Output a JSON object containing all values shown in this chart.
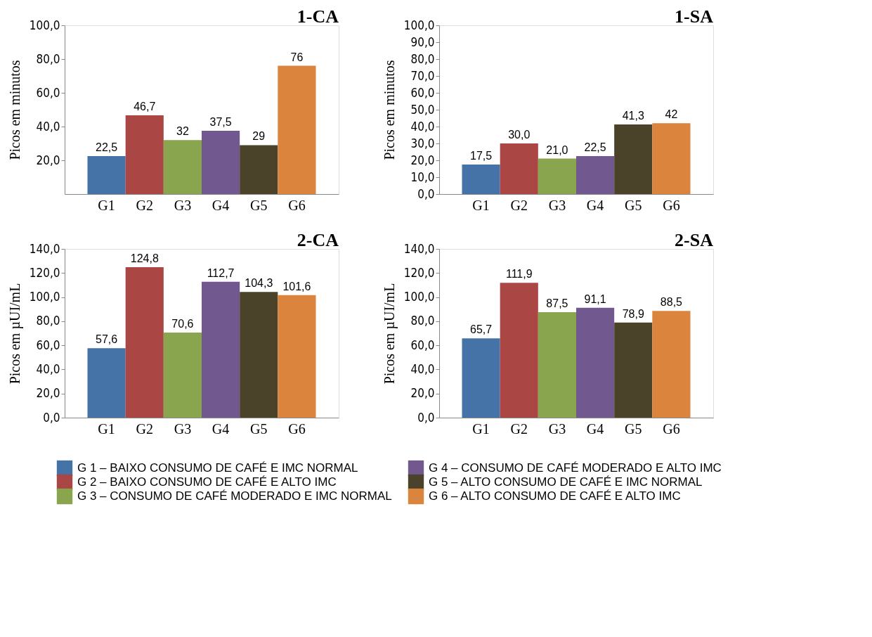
{
  "chart_data": [
    {
      "type": "bar",
      "title": "1-CA",
      "ylabel": "Picos em minutos",
      "categories": [
        "G1",
        "G2",
        "G3",
        "G4",
        "G5",
        "G6"
      ],
      "values": [
        22.5,
        46.7,
        32,
        37.5,
        29,
        76
      ],
      "value_labels": [
        "22,5",
        "46,7",
        "32",
        "37,5",
        "29",
        "76"
      ],
      "colors": [
        "#4572a7",
        "#aa4643",
        "#89a54e",
        "#71588f",
        "#4a4329",
        "#db843d"
      ],
      "ylim": [
        0,
        100
      ],
      "yticks": [
        {
          "value": 20,
          "label": "20,0"
        },
        {
          "value": 40,
          "label": "40,0"
        },
        {
          "value": 60,
          "label": "60,0"
        },
        {
          "value": 80,
          "label": "80,0"
        },
        {
          "value": 100,
          "label": "100,0"
        }
      ]
    },
    {
      "type": "bar",
      "title": "1-SA",
      "ylabel": "Picos em minutos",
      "categories": [
        "G1",
        "G2",
        "G3",
        "G4",
        "G5",
        "G6"
      ],
      "values": [
        17.5,
        30.0,
        21.0,
        22.5,
        41.3,
        42
      ],
      "value_labels": [
        "17,5",
        "30,0",
        "21,0",
        "22,5",
        "41,3",
        "42"
      ],
      "colors": [
        "#4572a7",
        "#aa4643",
        "#89a54e",
        "#71588f",
        "#4a4329",
        "#db843d"
      ],
      "ylim": [
        0,
        100
      ],
      "yticks": [
        {
          "value": 0,
          "label": "0,0"
        },
        {
          "value": 10,
          "label": "10,0"
        },
        {
          "value": 20,
          "label": "20,0"
        },
        {
          "value": 30,
          "label": "30,0"
        },
        {
          "value": 40,
          "label": "40,0"
        },
        {
          "value": 50,
          "label": "50,0"
        },
        {
          "value": 60,
          "label": "60,0"
        },
        {
          "value": 70,
          "label": "70,0"
        },
        {
          "value": 80,
          "label": "80,0"
        },
        {
          "value": 90,
          "label": "90,0"
        },
        {
          "value": 100,
          "label": "100,0"
        }
      ]
    },
    {
      "type": "bar",
      "title": "2-CA",
      "ylabel": "Picos em µUI/mL",
      "categories": [
        "G1",
        "G2",
        "G3",
        "G4",
        "G5",
        "G6"
      ],
      "values": [
        57.6,
        124.8,
        70.6,
        112.7,
        104.3,
        101.6
      ],
      "value_labels": [
        "57,6",
        "124,8",
        "70,6",
        "112,7",
        "104,3",
        "101,6"
      ],
      "colors": [
        "#4572a7",
        "#aa4643",
        "#89a54e",
        "#71588f",
        "#4a4329",
        "#db843d"
      ],
      "ylim": [
        0,
        140
      ],
      "yticks": [
        {
          "value": 0,
          "label": "0,0"
        },
        {
          "value": 20,
          "label": "20,0"
        },
        {
          "value": 40,
          "label": "40,0"
        },
        {
          "value": 60,
          "label": "60,0"
        },
        {
          "value": 80,
          "label": "80,0"
        },
        {
          "value": 100,
          "label": "100,0"
        },
        {
          "value": 120,
          "label": "120,0"
        },
        {
          "value": 140,
          "label": "140,0"
        }
      ]
    },
    {
      "type": "bar",
      "title": "2-SA",
      "ylabel": "Picos em µUI/mL",
      "categories": [
        "G1",
        "G2",
        "G3",
        "G4",
        "G5",
        "G6"
      ],
      "values": [
        65.7,
        111.9,
        87.5,
        91.1,
        78.9,
        88.5
      ],
      "value_labels": [
        "65,7",
        "111,9",
        "87,5",
        "91,1",
        "78,9",
        "88,5"
      ],
      "colors": [
        "#4572a7",
        "#aa4643",
        "#89a54e",
        "#71588f",
        "#4a4329",
        "#db843d"
      ],
      "ylim": [
        0,
        140
      ],
      "yticks": [
        {
          "value": 0,
          "label": "0,0"
        },
        {
          "value": 20,
          "label": "20,0"
        },
        {
          "value": 40,
          "label": "40,0"
        },
        {
          "value": 60,
          "label": "60,0"
        },
        {
          "value": 80,
          "label": "80,0"
        },
        {
          "value": 100,
          "label": "100,0"
        },
        {
          "value": 120,
          "label": "120,0"
        },
        {
          "value": 140,
          "label": "140,0"
        }
      ]
    },
    {
      "type": "other",
      "categories": [
        "G 1 – BAIXO CONSUMO DE CAFÉ E IMC NORMAL",
        "G 2 – BAIXO CONSUMO DE CAFÉ E ALTO IMC",
        "G 3 – CONSUMO DE CAFÉ MODERADO E IMC NORMAL",
        "G 4 – CONSUMO DE CAFÉ MODERADO E ALTO IMC",
        "G 5 – ALTO CONSUMO DE CAFÉ E IMC NORMAL",
        "G 6 – ALTO CONSUMO DE CAFÉ E ALTO IMC"
      ],
      "colors": [
        "#4572a7",
        "#aa4643",
        "#89a54e",
        "#71588f",
        "#4a4329",
        "#db843d"
      ]
    }
  ]
}
